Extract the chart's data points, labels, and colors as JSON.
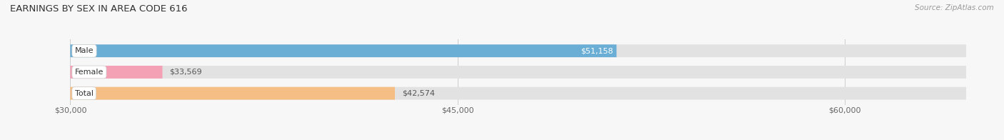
{
  "title": "EARNINGS BY SEX IN AREA CODE 616",
  "source": "Source: ZipAtlas.com",
  "categories": [
    "Male",
    "Female",
    "Total"
  ],
  "values": [
    51158,
    33569,
    42574
  ],
  "bar_colors": [
    "#6aaed6",
    "#f4a0b5",
    "#f5be85"
  ],
  "bar_label_bg_colors": [
    "#6aaed6",
    "#f4a0b5",
    "#f5be85"
  ],
  "bar_labels": [
    "$51,158",
    "$33,569",
    "$42,574"
  ],
  "bar_label_inside": [
    true,
    false,
    false
  ],
  "bar_label_text_colors": [
    "#ffffff",
    "#555555",
    "#555555"
  ],
  "xmin": 30000,
  "xmax": 65000,
  "xticks": [
    30000,
    45000,
    60000
  ],
  "xtick_labels": [
    "$30,000",
    "$45,000",
    "$60,000"
  ],
  "background_color": "#f7f7f7",
  "bar_bg_color": "#e2e2e2",
  "title_fontsize": 9.5,
  "label_fontsize": 8,
  "cat_fontsize": 8,
  "source_fontsize": 7.5,
  "bar_height": 0.6,
  "bar_spacing": 1.0
}
